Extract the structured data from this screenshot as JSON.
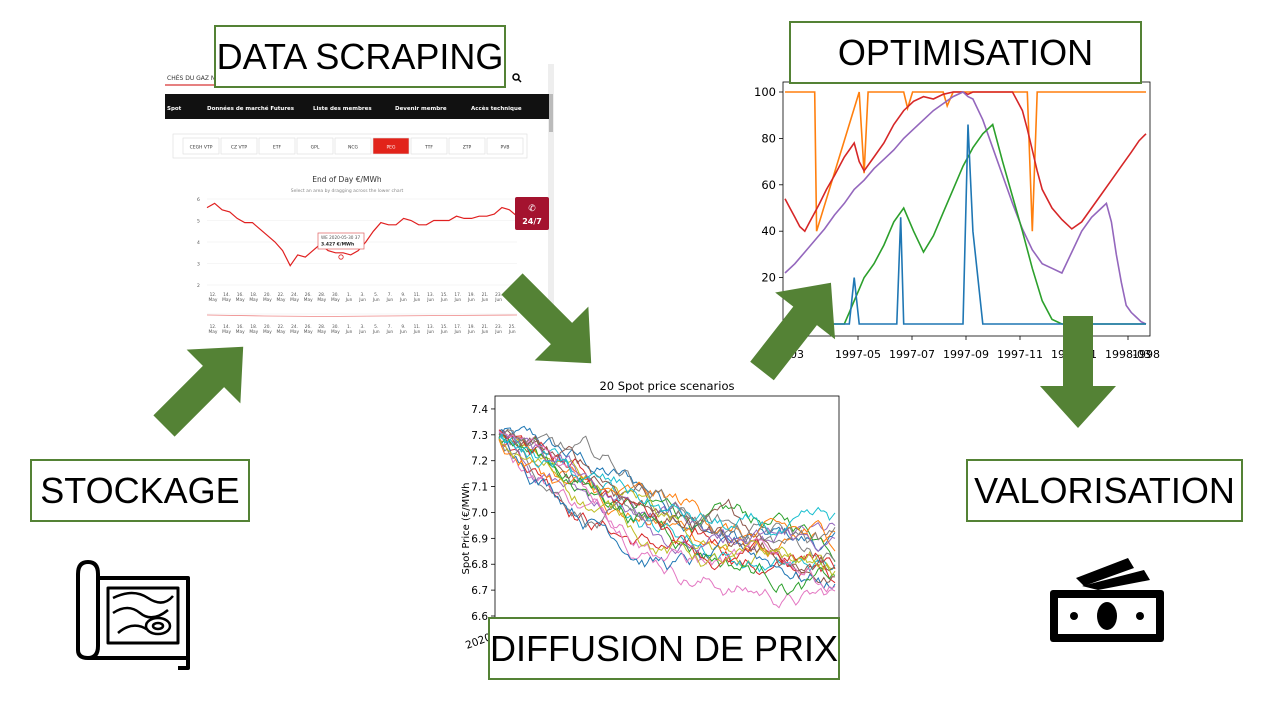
{
  "labels": {
    "data_scraping": "DATA SCRAPING",
    "optimisation": "OPTIMISATION",
    "stockage": "STOCKAGE",
    "valorisation": "VALORISATION",
    "diffusion": "DIFFUSION DE PRIX"
  },
  "colors": {
    "box_border": "#548235",
    "arrow": "#548235"
  },
  "icons": [
    "map-icon",
    "banknote-icon"
  ],
  "scrape_page": {
    "header_text": "CHÉS DU GAZ NA",
    "nav": [
      "Spot",
      "Données de marché Futures",
      "Liste des membres",
      "Devenir membre",
      "Accès technique"
    ],
    "market_tabs": [
      "CEGH VTP",
      "CZ VTP",
      "ETF",
      "GPL",
      "NCG",
      "PEG",
      "TTF",
      "ZTP",
      "PVB"
    ],
    "active_tab": "PEG",
    "chart_title": "End of Day €/MWh",
    "chart_hint": "Select an area by dragging across the lower chart",
    "tooltip_line1": "WE 2020-05-30 37",
    "tooltip_line2": "3.427 €/MWh",
    "side_button": "24/7",
    "y_ticks": [
      "6",
      "5",
      "4",
      "3",
      "2"
    ],
    "x_ticks": [
      [
        "12.",
        "May"
      ],
      [
        "14.",
        "May"
      ],
      [
        "16.",
        "May"
      ],
      [
        "18.",
        "May"
      ],
      [
        "20.",
        "May"
      ],
      [
        "22.",
        "May"
      ],
      [
        "24.",
        "May"
      ],
      [
        "26.",
        "May"
      ],
      [
        "28.",
        "May"
      ],
      [
        "30.",
        "May"
      ],
      [
        "1.",
        "Jun"
      ],
      [
        "3.",
        "Jun"
      ],
      [
        "5.",
        "Jun"
      ],
      [
        "7.",
        "Jun"
      ],
      [
        "9.",
        "Jun"
      ],
      [
        "11.",
        "Jun"
      ],
      [
        "13.",
        "Jun"
      ],
      [
        "15.",
        "Jun"
      ],
      [
        "17.",
        "Jun"
      ],
      [
        "19.",
        "Jun"
      ],
      [
        "21.",
        "Jun"
      ],
      [
        "23.",
        "Jun"
      ],
      [
        "25.",
        "Jun"
      ]
    ]
  },
  "chart_data": [
    {
      "type": "line",
      "title": "",
      "y_ticks": [
        "100",
        "80",
        "60",
        "40",
        "20"
      ],
      "x_ticks": [
        "-03",
        "1997-05",
        "1997-07",
        "1997-09",
        "1997-11",
        "1998-01",
        "1998-03",
        "1998-05"
      ],
      "ylim": [
        0,
        100
      ],
      "series": [
        {
          "color": "#ff7f0e",
          "x": [
            0,
            3,
            3.2,
            7.5,
            8,
            8.4,
            12,
            12.4,
            12.9,
            16,
            16.4,
            17,
            17.6,
            18,
            24.5,
            25,
            25.5,
            27,
            27.5,
            33,
            33.5,
            34,
            35,
            36.5
          ],
          "y": [
            100,
            100,
            40,
            100,
            65,
            100,
            100,
            93,
            100,
            100,
            94,
            100,
            100,
            100,
            100,
            40,
            100,
            100,
            100,
            100,
            100,
            100,
            100,
            100
          ]
        },
        {
          "color": "#d62728",
          "x": [
            0,
            0.5,
            1,
            1.5,
            2,
            2.5,
            3,
            3.5,
            4.2,
            5,
            6,
            7,
            7.5,
            8,
            9,
            10,
            11,
            12,
            13,
            14,
            15,
            16,
            17,
            18,
            18.5,
            19,
            21,
            23,
            24,
            24.5,
            25,
            25.5,
            26,
            27,
            28,
            29,
            30,
            31,
            32,
            33,
            34,
            35,
            35.8,
            36.5
          ],
          "y": [
            54,
            50,
            46,
            42,
            40,
            44,
            48,
            52,
            58,
            64,
            72,
            78,
            70,
            66,
            72,
            78,
            86,
            92,
            96,
            98,
            97,
            99,
            100,
            100,
            99,
            100,
            100,
            100,
            92,
            84,
            75,
            66,
            58,
            50,
            45,
            41,
            44,
            50,
            56,
            62,
            68,
            74,
            79,
            82
          ]
        },
        {
          "color": "#9467bd",
          "x": [
            0,
            1,
            2,
            3,
            4,
            5,
            6,
            7,
            8,
            9,
            10,
            11,
            12,
            13,
            14,
            15,
            16,
            17,
            18,
            18.5,
            19,
            20,
            21,
            22,
            23,
            24,
            25,
            26,
            27,
            28,
            29,
            30,
            31,
            32,
            32.5,
            33,
            33.5,
            34,
            34.5,
            35,
            35.5,
            36,
            36.5
          ],
          "y": [
            22,
            26,
            31,
            36,
            41,
            47,
            52,
            58,
            62,
            67,
            71,
            75,
            80,
            84,
            88,
            92,
            95,
            98,
            100,
            98,
            97,
            88,
            76,
            64,
            52,
            41,
            32,
            26,
            24,
            22,
            31,
            40,
            46,
            50,
            52,
            44,
            30,
            18,
            8,
            5,
            3,
            1,
            0
          ]
        },
        {
          "color": "#2ca02c",
          "x": [
            0,
            6,
            6.5,
            7,
            7.5,
            8,
            9,
            10,
            11,
            12,
            13,
            14,
            15,
            16,
            17,
            18,
            19,
            20,
            21,
            22,
            23,
            24,
            25,
            26,
            27,
            28,
            29,
            30,
            31,
            36.5
          ],
          "y": [
            0,
            0,
            5,
            10,
            15,
            20,
            26,
            34,
            44,
            50,
            40,
            31,
            38,
            48,
            58,
            68,
            76,
            82,
            86,
            70,
            55,
            40,
            24,
            10,
            2,
            0,
            0,
            0,
            0,
            0
          ]
        },
        {
          "color": "#1f77b4",
          "x": [
            0,
            6.5,
            7,
            7.5,
            8,
            11,
            11.3,
            11.7,
            12,
            14,
            16,
            17,
            18,
            18.5,
            19,
            20,
            21,
            22,
            36.5
          ],
          "y": [
            0,
            0,
            20,
            0,
            0,
            0,
            0,
            46,
            0,
            0,
            0,
            0,
            0,
            86,
            40,
            0,
            0,
            0,
            0
          ]
        }
      ]
    },
    {
      "type": "line",
      "title": "20 Spot price scenarios",
      "ylabel": "Spot Price (€/MWh",
      "y_ticks": [
        "7.4",
        "7.3",
        "7.2",
        "7.1",
        "7.0",
        "6.9",
        "6.8",
        "6.7",
        "6.6"
      ],
      "x_ticks": [
        "2020"
      ],
      "ylim": [
        6.6,
        7.45
      ],
      "n_series": 20
    },
    {
      "type": "line",
      "title": "End of Day €/MWh",
      "ylim": [
        2,
        6
      ],
      "series": [
        {
          "color": "#e02020",
          "values": [
            5.6,
            5.8,
            5.5,
            5.4,
            5.1,
            4.9,
            4.9,
            4.6,
            4.3,
            4.0,
            3.6,
            2.9,
            3.4,
            3.3,
            3.6,
            3.9,
            3.6,
            3.5,
            3.5,
            3.4,
            3.6,
            4.0,
            4.5,
            4.9,
            4.8,
            4.8,
            5.1,
            5.0,
            4.8,
            4.8,
            5.0,
            5.0,
            5.0,
            5.2,
            5.1,
            5.1,
            5.2,
            5.2,
            5.3,
            5.6,
            5.5,
            5.2
          ]
        }
      ]
    }
  ]
}
